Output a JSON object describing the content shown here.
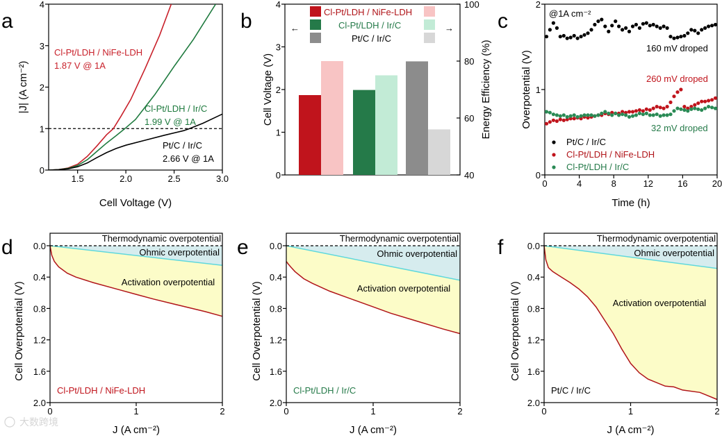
{
  "panels": {
    "a": {
      "letter": "a"
    },
    "b": {
      "letter": "b"
    },
    "c": {
      "letter": "c"
    },
    "d": {
      "letter": "d"
    },
    "e": {
      "letter": "e"
    },
    "f": {
      "letter": "f"
    }
  },
  "watermark": "大数跨境",
  "chart_data": [
    {
      "id": "a",
      "type": "line",
      "xlabel": "Cell Voltage (V)",
      "ylabel": "|J| (A cm⁻²)",
      "xlim": [
        1.2,
        3.0
      ],
      "ylim": [
        0,
        4
      ],
      "xticks": [
        "1.5",
        "2.0",
        "2.5",
        "3.0"
      ],
      "yticks": [
        "0",
        "1",
        "2",
        "3",
        "4"
      ],
      "reference_line": {
        "y": 1,
        "style": "dashed"
      },
      "series": [
        {
          "label": "Cl-Pt/LDH / NiFe-LDH",
          "note": "1.87 V @ 1A",
          "color": "#c8202a",
          "x": [
            1.2,
            1.3,
            1.4,
            1.5,
            1.6,
            1.7,
            1.8,
            1.87,
            1.95,
            2.05,
            2.2,
            2.35,
            2.47
          ],
          "y": [
            0,
            0.01,
            0.05,
            0.14,
            0.33,
            0.58,
            0.85,
            1.0,
            1.3,
            1.7,
            2.45,
            3.25,
            4.0
          ]
        },
        {
          "label": "Cl-Pt/LDH / Ir/C",
          "note": "1.99 V @ 1A",
          "color": "#1e7a3e",
          "x": [
            1.2,
            1.3,
            1.4,
            1.5,
            1.6,
            1.7,
            1.8,
            1.9,
            1.99,
            2.1,
            2.3,
            2.5,
            2.7,
            2.93
          ],
          "y": [
            0,
            0.01,
            0.04,
            0.11,
            0.25,
            0.45,
            0.65,
            0.83,
            1.0,
            1.22,
            1.82,
            2.5,
            3.15,
            4.0
          ]
        },
        {
          "label": "Pt/C / Ir/C",
          "note": "2.66 V @ 1A",
          "color": "#000000",
          "x": [
            1.2,
            1.3,
            1.4,
            1.5,
            1.6,
            1.7,
            1.8,
            1.9,
            2.0,
            2.2,
            2.4,
            2.6,
            2.66,
            2.8,
            3.0
          ],
          "y": [
            0,
            0.01,
            0.03,
            0.08,
            0.17,
            0.3,
            0.42,
            0.52,
            0.6,
            0.72,
            0.84,
            0.95,
            1.0,
            1.13,
            1.35
          ]
        }
      ]
    },
    {
      "id": "b",
      "type": "bar",
      "ylabel": "Cell Voltage (V)",
      "y2label": "Energy Efficiency (%)",
      "ylim": [
        0,
        4
      ],
      "y2lim": [
        40,
        100
      ],
      "yticks": [
        "0",
        "1",
        "2",
        "3",
        "4"
      ],
      "y2ticks": [
        "40",
        "60",
        "80",
        "100"
      ],
      "legend": {
        "placement": "top",
        "arrow_left": "←",
        "arrow_right": "→"
      },
      "series": [
        {
          "label": "Cl-Pt/LDH / NiFe-LDH",
          "voltage": 1.87,
          "efficiency": 80,
          "color": "#c0141c",
          "light": "#f8c4c4"
        },
        {
          "label": "Cl-Pt/LDH / Ir/C",
          "voltage": 1.99,
          "efficiency": 75,
          "color": "#257a49",
          "light": "#c2ebd6"
        },
        {
          "label": "Pt/C / Ir/C",
          "voltage": 2.66,
          "efficiency": 56,
          "color": "#8c8c8c",
          "light": "#d7d7d7"
        }
      ]
    },
    {
      "id": "c",
      "type": "scatter",
      "xlabel": "Time (h)",
      "ylabel": "Overpotential (V)",
      "xlim": [
        0,
        20
      ],
      "ylim": [
        0,
        2
      ],
      "xticks": [
        "0",
        "4",
        "8",
        "12",
        "16",
        "20"
      ],
      "yticks": [
        "0",
        "1",
        "2"
      ],
      "condition": "@1A cm⁻²",
      "annotations": [
        "160 mV droped",
        "260 mV droped",
        "32 mV droped"
      ],
      "series": [
        {
          "label": "Pt/C / Ir/C",
          "color": "#000000",
          "x": [
            0.2,
            0.6,
            1,
            1.4,
            1.8,
            2.2,
            2.6,
            3,
            3.4,
            3.8,
            4.2,
            4.6,
            5,
            5.4,
            5.8,
            6.2,
            6.6,
            7,
            7.4,
            7.8,
            8.2,
            8.6,
            9,
            9.4,
            9.8,
            10.2,
            10.6,
            11,
            11.4,
            11.8,
            12.2,
            12.6,
            13,
            13.4,
            13.8,
            14.2,
            14.6,
            15,
            15.4,
            15.8,
            16.2,
            16.6,
            17,
            17.4,
            17.8,
            18.2,
            18.6,
            19,
            19.4,
            19.8
          ],
          "y": [
            1.62,
            1.7,
            1.78,
            1.72,
            1.62,
            1.63,
            1.6,
            1.61,
            1.63,
            1.6,
            1.62,
            1.64,
            1.66,
            1.7,
            1.76,
            1.8,
            1.82,
            1.74,
            1.68,
            1.75,
            1.8,
            1.74,
            1.7,
            1.72,
            1.68,
            1.74,
            1.76,
            1.72,
            1.77,
            1.78,
            1.75,
            1.76,
            1.74,
            1.72,
            1.74,
            1.72,
            1.62,
            1.6,
            1.61,
            1.62,
            1.63,
            1.66,
            1.7,
            1.69,
            1.66,
            1.7,
            1.72,
            1.74,
            1.75,
            1.76
          ]
        },
        {
          "label": "Cl-Pt/LDH / NiFe-LDH",
          "color": "#c0141c",
          "x": [
            0.2,
            0.6,
            1,
            1.4,
            1.8,
            2.2,
            2.6,
            3,
            3.4,
            3.8,
            4.2,
            4.6,
            5,
            5.4,
            5.8,
            6.2,
            6.6,
            7,
            7.4,
            7.8,
            8.2,
            8.6,
            9,
            9.4,
            9.8,
            10.2,
            10.6,
            11,
            11.4,
            11.8,
            12.2,
            12.6,
            13,
            13.4,
            13.8,
            14.2,
            14.6,
            15,
            15.4,
            15.8,
            16.2,
            16.6,
            17,
            17.4,
            17.8,
            18.2,
            18.6,
            19,
            19.4,
            19.8
          ],
          "y": [
            0.6,
            0.62,
            0.64,
            0.63,
            0.65,
            0.64,
            0.65,
            0.66,
            0.66,
            0.67,
            0.66,
            0.68,
            0.67,
            0.68,
            0.69,
            0.7,
            0.7,
            0.72,
            0.71,
            0.73,
            0.72,
            0.72,
            0.74,
            0.73,
            0.74,
            0.74,
            0.75,
            0.76,
            0.75,
            0.77,
            0.76,
            0.78,
            0.8,
            0.79,
            0.78,
            0.8,
            0.85,
            0.92,
            0.97,
            1.0,
            0.8,
            0.78,
            0.8,
            0.82,
            0.84,
            0.86,
            0.86,
            0.87,
            0.88,
            0.9
          ]
        },
        {
          "label": "Cl-Pt/LDH / Ir/C",
          "color": "#2a8a55",
          "x": [
            0.2,
            0.6,
            1,
            1.4,
            1.8,
            2.2,
            2.6,
            3,
            3.4,
            3.8,
            4.2,
            4.6,
            5,
            5.4,
            5.8,
            6.2,
            6.6,
            7,
            7.4,
            7.8,
            8.2,
            8.6,
            9,
            9.4,
            9.8,
            10.2,
            10.6,
            11,
            11.4,
            11.8,
            12.2,
            12.6,
            13,
            13.4,
            13.8,
            14.2,
            14.6,
            15,
            15.4,
            15.8,
            16.2,
            16.6,
            17,
            17.4,
            17.8,
            18.2,
            18.6,
            19,
            19.4,
            19.8
          ],
          "y": [
            0.74,
            0.73,
            0.71,
            0.7,
            0.69,
            0.7,
            0.68,
            0.69,
            0.7,
            0.68,
            0.69,
            0.7,
            0.7,
            0.7,
            0.69,
            0.7,
            0.72,
            0.74,
            0.72,
            0.7,
            0.72,
            0.7,
            0.71,
            0.7,
            0.68,
            0.69,
            0.7,
            0.72,
            0.71,
            0.72,
            0.7,
            0.7,
            0.71,
            0.69,
            0.7,
            0.7,
            0.71,
            0.75,
            0.78,
            0.77,
            0.76,
            0.75,
            0.77,
            0.78,
            0.77,
            0.76,
            0.78,
            0.8,
            0.79,
            0.78
          ]
        }
      ]
    },
    {
      "id": "d",
      "type": "area",
      "xlabel": "J (A cm⁻²)",
      "ylabel": "Cell Overpotential (V)",
      "xlim": [
        0,
        2
      ],
      "ylim": [
        2.0,
        0
      ],
      "xticks": [
        "0",
        "1",
        "2"
      ],
      "yticks": [
        "0.0",
        "0.4",
        "0.8",
        "1.2",
        "1.6",
        "2.0"
      ],
      "regions": [
        "Thermodynamic overpotential",
        "Ohmic overpotential",
        "Activation overpotential"
      ],
      "sample": "Cl-Pt/LDH / NiFe-LDH",
      "sample_color": "#c0141c",
      "ohmic": {
        "x": [
          0,
          2
        ],
        "y": [
          0,
          0.25
        ]
      },
      "total": {
        "x": [
          0,
          0.02,
          0.05,
          0.1,
          0.2,
          0.3,
          0.5,
          0.8,
          1.0,
          1.2,
          1.5,
          1.8,
          2.0
        ],
        "y": [
          0,
          0.12,
          0.2,
          0.27,
          0.35,
          0.4,
          0.47,
          0.56,
          0.62,
          0.68,
          0.76,
          0.84,
          0.9
        ]
      }
    },
    {
      "id": "e",
      "type": "area",
      "xlabel": "J (A cm⁻²)",
      "ylabel": "Cell Overpotential (V)",
      "xlim": [
        0,
        2
      ],
      "ylim": [
        2.0,
        0
      ],
      "xticks": [
        "0",
        "1",
        "2"
      ],
      "yticks": [
        "0.0",
        "0.4",
        "0.8",
        "1.2",
        "1.6",
        "2.0"
      ],
      "regions": [
        "Thermodynamic overpotential",
        "Ohmic overpotential",
        "Activation overpotential"
      ],
      "sample": "Cl-Pt/LDH / Ir/C",
      "sample_color": "#257a49",
      "ohmic": {
        "x": [
          0,
          2
        ],
        "y": [
          0,
          0.44
        ]
      },
      "total": {
        "x": [
          0,
          0.02,
          0.05,
          0.1,
          0.2,
          0.3,
          0.5,
          0.8,
          1.0,
          1.2,
          1.5,
          1.8,
          2.0
        ],
        "y": [
          0.2,
          0.23,
          0.27,
          0.33,
          0.42,
          0.48,
          0.58,
          0.7,
          0.78,
          0.86,
          0.96,
          1.06,
          1.12
        ]
      }
    },
    {
      "id": "f",
      "type": "area",
      "xlabel": "J (A cm⁻²)",
      "ylabel": "Cell Overpotential (V)",
      "xlim": [
        0,
        2
      ],
      "ylim": [
        2.0,
        0
      ],
      "xticks": [
        "0",
        "1",
        "2"
      ],
      "yticks": [
        "0.0",
        "0.4",
        "0.8",
        "1.2",
        "1.6",
        "2.0"
      ],
      "regions": [
        "Thermodynamic overpotential",
        "Ohmic overpotential",
        "Activation overpotential"
      ],
      "sample": "Pt/C / Ir/C",
      "sample_color": "#000000",
      "ohmic": {
        "x": [
          0,
          2
        ],
        "y": [
          0,
          0.29
        ]
      },
      "total": {
        "x": [
          0,
          0.02,
          0.05,
          0.1,
          0.2,
          0.3,
          0.4,
          0.5,
          0.6,
          0.7,
          0.8,
          0.9,
          1.0,
          1.1,
          1.2,
          1.4,
          1.5,
          1.6,
          1.8,
          2.0
        ],
        "y": [
          0,
          0.18,
          0.28,
          0.33,
          0.4,
          0.47,
          0.55,
          0.65,
          0.78,
          0.95,
          1.12,
          1.32,
          1.5,
          1.62,
          1.7,
          1.79,
          1.8,
          1.84,
          1.87,
          1.96
        ]
      }
    }
  ]
}
